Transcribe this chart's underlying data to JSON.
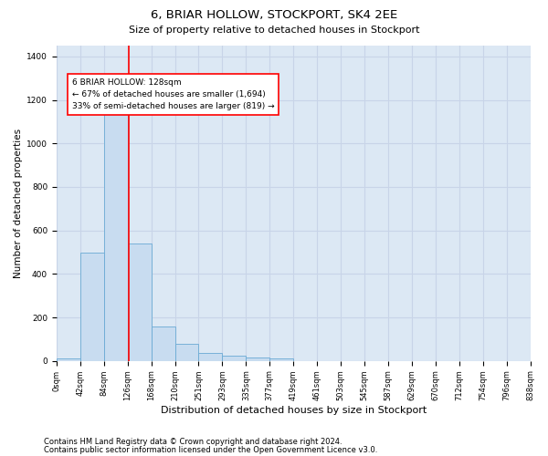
{
  "title1": "6, BRIAR HOLLOW, STOCKPORT, SK4 2EE",
  "title2": "Size of property relative to detached houses in Stockport",
  "xlabel": "Distribution of detached houses by size in Stockport",
  "ylabel": "Number of detached properties",
  "footer1": "Contains HM Land Registry data © Crown copyright and database right 2024.",
  "footer2": "Contains public sector information licensed under the Open Government Licence v3.0.",
  "annotation_line1": "6 BRIAR HOLLOW: 128sqm",
  "annotation_line2": "← 67% of detached houses are smaller (1,694)",
  "annotation_line3": "33% of semi-detached houses are larger (819) →",
  "bar_values": [
    10,
    500,
    1155,
    540,
    160,
    80,
    35,
    25,
    15,
    13,
    0,
    0,
    0,
    0,
    0,
    0,
    0,
    0,
    0,
    0
  ],
  "bin_labels": [
    "0sqm",
    "42sqm",
    "84sqm",
    "126sqm",
    "168sqm",
    "210sqm",
    "251sqm",
    "293sqm",
    "335sqm",
    "377sqm",
    "419sqm",
    "461sqm",
    "503sqm",
    "545sqm",
    "587sqm",
    "629sqm",
    "670sqm",
    "712sqm",
    "754sqm",
    "796sqm",
    "838sqm"
  ],
  "bar_color": "#c8dcf0",
  "bar_edge_color": "#6aaad4",
  "grid_color": "#c8d4e8",
  "background_color": "#dce8f4",
  "ylim": [
    0,
    1450
  ],
  "yticks": [
    0,
    200,
    400,
    600,
    800,
    1000,
    1200,
    1400
  ],
  "red_line_bin_index": 2.95,
  "title1_fontsize": 9.5,
  "title2_fontsize": 8.0,
  "ylabel_fontsize": 7.5,
  "xlabel_fontsize": 8.0,
  "tick_fontsize": 6.0,
  "footer_fontsize": 6.0
}
